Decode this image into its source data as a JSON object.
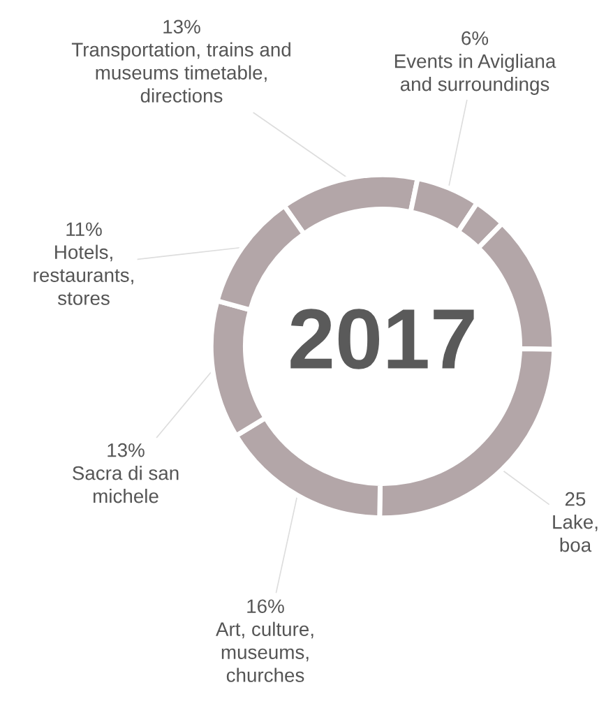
{
  "chart_data": {
    "type": "donut",
    "categories": [
      "Transportation, trains and\nmuseums timetable,\ndirections",
      "Events in Avigliana\nand surroundings",
      null,
      null,
      "Lake,\nboa",
      "Art, culture,\nmuseums,\nchurches",
      "Sacra di san\nmichele",
      "Hotels,\nrestaurants,\nstores"
    ],
    "values": [
      13,
      6,
      3,
      13,
      25,
      16,
      13,
      11
    ],
    "value_labels": [
      "13%",
      "6%",
      null,
      null,
      "25",
      "16%",
      "13%",
      "11%"
    ],
    "colors": [
      "#b3a6a8",
      "#b3a6a8",
      "#b3a6a8",
      "#b3a6a8",
      "#b3a6a8",
      "#b3a6a8",
      "#b3a6a8",
      "#b3a6a8"
    ],
    "annotations": [
      "2017"
    ]
  }
}
